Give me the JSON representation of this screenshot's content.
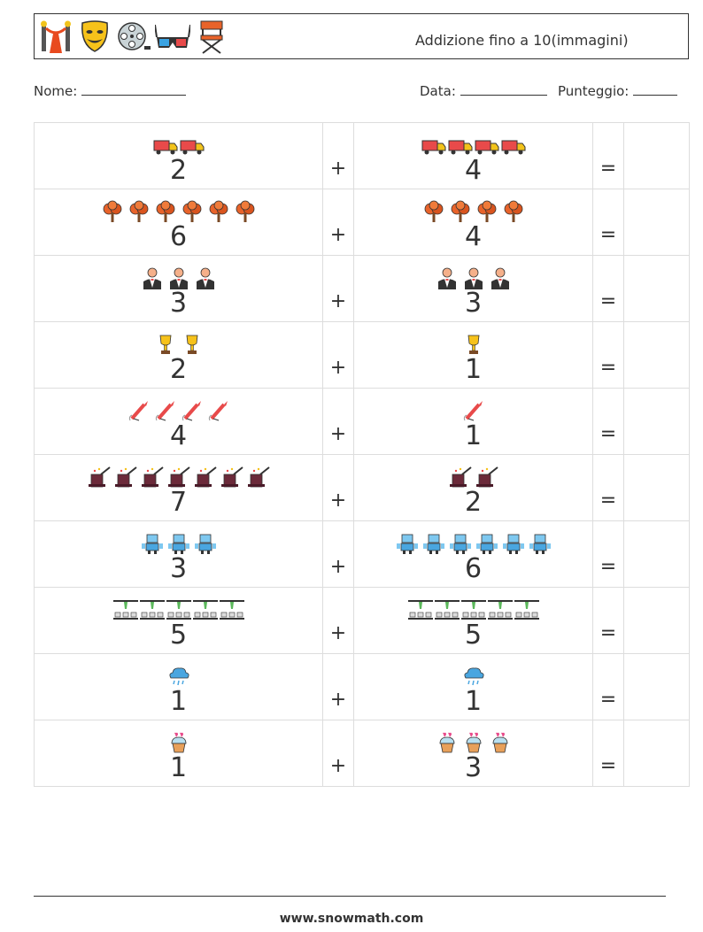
{
  "header": {
    "title": "Addizione fino a 10(immagini)",
    "icons": [
      "red-carpet-icon",
      "theater-mask-icon",
      "film-reel-icon",
      "3d-glasses-icon",
      "director-chair-icon"
    ]
  },
  "fields": {
    "name_label": "Nome:",
    "date_label": "Data:",
    "score_label": "Punteggio:"
  },
  "operators": {
    "plus": "+",
    "equals": "="
  },
  "problems": [
    {
      "a": 2,
      "b": 4,
      "a_text": "2",
      "b_text": "4",
      "icon": "truck-icon"
    },
    {
      "a": 6,
      "b": 4,
      "a_text": "6",
      "b_text": "4",
      "icon": "tree-icon"
    },
    {
      "a": 3,
      "b": 3,
      "a_text": "3",
      "b_text": "3",
      "icon": "waiter-icon"
    },
    {
      "a": 2,
      "b": 1,
      "a_text": "2",
      "b_text": "1",
      "icon": "trophy-icon"
    },
    {
      "a": 4,
      "b": 1,
      "a_text": "4",
      "b_text": "1",
      "icon": "firework-rocket-icon"
    },
    {
      "a": 7,
      "b": 2,
      "a_text": "7",
      "b_text": "2",
      "icon": "magic-hat-icon"
    },
    {
      "a": 3,
      "b": 6,
      "a_text": "3",
      "b_text": "6",
      "icon": "robot-icon"
    },
    {
      "a": 5,
      "b": 5,
      "a_text": "5",
      "b_text": "5",
      "icon": "cinema-seats-icon"
    },
    {
      "a": 1,
      "b": 1,
      "a_text": "1",
      "b_text": "1",
      "icon": "rain-cloud-icon"
    },
    {
      "a": 1,
      "b": 3,
      "a_text": "1",
      "b_text": "3",
      "icon": "cupcake-icon"
    }
  ],
  "footer": {
    "url": "www.snowmath.com"
  }
}
